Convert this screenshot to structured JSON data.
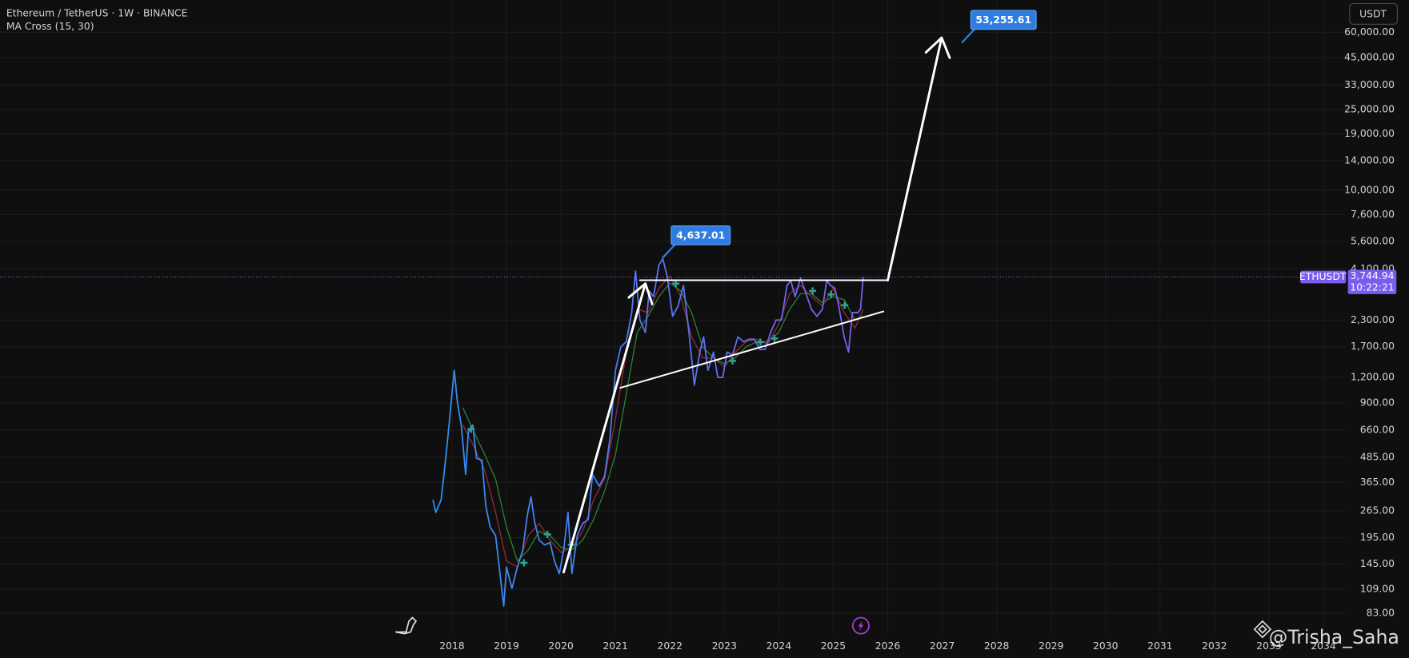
{
  "chart_data": {
    "type": "line",
    "title": "Ethereum / TetherUS · 1W · BINANCE",
    "subtitle": "MA Cross (15, 30)",
    "currency": "USDT",
    "watermark": "@Trisha_Saha",
    "log_scale": true,
    "grid": true,
    "xlim": [
      2009.7,
      2034.4
    ],
    "xticks": [
      2018,
      2019,
      2020,
      2021,
      2022,
      2023,
      2024,
      2025,
      2026,
      2027,
      2028,
      2029,
      2030,
      2031,
      2032,
      2033,
      2034
    ],
    "ylim": [
      66.4,
      86500
    ],
    "yticks": [
      {
        "value": 83,
        "label": "83.00"
      },
      {
        "value": 109,
        "label": "109.00"
      },
      {
        "value": 145,
        "label": "145.00"
      },
      {
        "value": 195,
        "label": "195.00"
      },
      {
        "value": 265,
        "label": "265.00"
      },
      {
        "value": 365,
        "label": "365.00"
      },
      {
        "value": 485,
        "label": "485.00"
      },
      {
        "value": 660,
        "label": "660.00"
      },
      {
        "value": 900,
        "label": "900.00"
      },
      {
        "value": 1200,
        "label": "1,200.00"
      },
      {
        "value": 1700,
        "label": "1,700.00"
      },
      {
        "value": 2300,
        "label": "2,300.00"
      },
      {
        "value": 4100,
        "label": "4,100.00"
      },
      {
        "value": 5600,
        "label": "5,600.00"
      },
      {
        "value": 7600,
        "label": "7,600.00"
      },
      {
        "value": 10000,
        "label": "10,000.00"
      },
      {
        "value": 14000,
        "label": "14,000.00"
      },
      {
        "value": 19000,
        "label": "19,000.00"
      },
      {
        "value": 25000,
        "label": "25,000.00"
      },
      {
        "value": 33000,
        "label": "33,000.00"
      },
      {
        "value": 45000,
        "label": "45,000.00"
      },
      {
        "value": 60000,
        "label": "60,000.00"
      }
    ],
    "series": [
      {
        "name": "ETHUSDT",
        "color": "#2f8ff0",
        "color_end": "#7b5cf0",
        "x": [
          2017.65,
          2017.7,
          2017.8,
          2017.88,
          2017.95,
          2018.0,
          2018.04,
          2018.1,
          2018.17,
          2018.25,
          2018.3,
          2018.38,
          2018.45,
          2018.55,
          2018.62,
          2018.7,
          2018.8,
          2018.88,
          2018.95,
          2019.0,
          2019.1,
          2019.2,
          2019.3,
          2019.38,
          2019.45,
          2019.52,
          2019.6,
          2019.7,
          2019.8,
          2019.88,
          2019.97,
          2020.05,
          2020.13,
          2020.2,
          2020.3,
          2020.4,
          2020.5,
          2020.58,
          2020.7,
          2020.8,
          2020.9,
          2021.0,
          2021.1,
          2021.2,
          2021.3,
          2021.37,
          2021.45,
          2021.55,
          2021.62,
          2021.7,
          2021.8,
          2021.87,
          2021.95,
          2022.05,
          2022.15,
          2022.25,
          2022.35,
          2022.45,
          2022.55,
          2022.62,
          2022.7,
          2022.8,
          2022.88,
          2022.97,
          2023.05,
          2023.15,
          2023.25,
          2023.35,
          2023.45,
          2023.55,
          2023.65,
          2023.75,
          2023.85,
          2023.95,
          2024.05,
          2024.15,
          2024.22,
          2024.3,
          2024.4,
          2024.5,
          2024.6,
          2024.7,
          2024.8,
          2024.88,
          2024.95,
          2025.03,
          2025.1,
          2025.2,
          2025.28,
          2025.35,
          2025.45,
          2025.5,
          2025.55
        ],
        "values": [
          300,
          260,
          300,
          470,
          720,
          1000,
          1300,
          900,
          700,
          400,
          650,
          700,
          480,
          470,
          280,
          220,
          200,
          130,
          90,
          140,
          110,
          140,
          170,
          250,
          310,
          230,
          190,
          180,
          185,
          150,
          130,
          170,
          260,
          130,
          200,
          230,
          240,
          400,
          350,
          390,
          600,
          1300,
          1700,
          1800,
          2500,
          4000,
          2300,
          2000,
          3200,
          3000,
          4300,
          4600,
          3800,
          2400,
          2700,
          3400,
          2000,
          1100,
          1600,
          1900,
          1300,
          1600,
          1200,
          1200,
          1600,
          1550,
          1900,
          1800,
          1850,
          1850,
          1650,
          1650,
          2000,
          2300,
          2300,
          3400,
          3600,
          3000,
          3700,
          3100,
          2600,
          2400,
          2600,
          3600,
          3400,
          3300,
          2700,
          1900,
          1600,
          2500,
          2500,
          2600,
          3745
        ]
      },
      {
        "color": "#2e7d32",
        "x": [
          2018.2,
          2018.4,
          2018.6,
          2018.8,
          2019.0,
          2019.2,
          2019.4,
          2019.6,
          2019.8,
          2020.0,
          2020.2,
          2020.4,
          2020.6,
          2020.8,
          2021.0,
          2021.2,
          2021.4,
          2021.6,
          2021.8,
          2022.0,
          2022.2,
          2022.4,
          2022.6,
          2022.8,
          2023.0,
          2023.2,
          2023.4,
          2023.6,
          2023.8,
          2024.0,
          2024.2,
          2024.4,
          2024.6,
          2024.8,
          2025.0,
          2025.2,
          2025.4,
          2025.55
        ],
        "values": [
          850,
          650,
          500,
          380,
          220,
          150,
          170,
          210,
          200,
          175,
          170,
          190,
          240,
          330,
          500,
          1000,
          2000,
          2400,
          3000,
          3500,
          3200,
          2500,
          1700,
          1500,
          1400,
          1500,
          1700,
          1800,
          1800,
          2000,
          2600,
          3100,
          3100,
          2800,
          3000,
          2900,
          2300,
          2400
        ]
      },
      {
        "color": "#8e2a3a",
        "x": [
          2018.2,
          2018.4,
          2018.6,
          2018.8,
          2019.0,
          2019.2,
          2019.4,
          2019.6,
          2019.8,
          2020.0,
          2020.2,
          2020.4,
          2020.6,
          2020.8,
          2021.0,
          2021.2,
          2021.4,
          2021.6,
          2021.8,
          2022.0,
          2022.2,
          2022.4,
          2022.6,
          2022.8,
          2023.0,
          2023.2,
          2023.4,
          2023.6,
          2023.8,
          2024.0,
          2024.2,
          2024.4,
          2024.6,
          2024.8,
          2025.0,
          2025.2,
          2025.4,
          2025.55
        ],
        "values": [
          700,
          550,
          420,
          260,
          150,
          140,
          200,
          230,
          190,
          165,
          175,
          210,
          300,
          380,
          750,
          1600,
          2600,
          2500,
          3300,
          3800,
          3000,
          1900,
          1500,
          1500,
          1350,
          1600,
          1800,
          1850,
          1750,
          2200,
          3100,
          3400,
          3000,
          2700,
          3300,
          2500,
          2100,
          2600
        ]
      }
    ],
    "signals": {
      "color": "#26a69a",
      "x": [
        2018.35,
        2019.32,
        2019.75,
        2020.19,
        2022.11,
        2023.15,
        2023.66,
        2023.92,
        2024.62,
        2024.96,
        2025.21
      ],
      "values": [
        668,
        147,
        203,
        180,
        3475,
        1449,
        1790,
        1866,
        3200,
        3076,
        2723
      ]
    },
    "drawings": [
      {
        "x": [
          2020.05,
          2021.55
        ],
        "values": [
          132,
          3475
        ],
        "arrow": true
      },
      {
        "x": [
          2021.45,
          2026.0
        ],
        "values": [
          3611,
          3611
        ],
        "arrow": false
      },
      {
        "x": [
          2021.09,
          2025.92
        ],
        "values": [
          1067,
          2535
        ],
        "arrow": false
      },
      {
        "x": [
          2026.0,
          2026.99
        ],
        "values": [
          3611,
          56400
        ],
        "arrow": true
      }
    ],
    "annotations": [
      {
        "x": 2021.86,
        "value": 4637.01,
        "label": "4,637.01"
      },
      {
        "x": 2027.36,
        "value": 53255.61,
        "label": "53,255.61"
      }
    ],
    "current_price": {
      "value": 3744.94,
      "label": "3,744.94"
    },
    "symbol": "ETHUSDT",
    "countdown": "10:22:21"
  }
}
